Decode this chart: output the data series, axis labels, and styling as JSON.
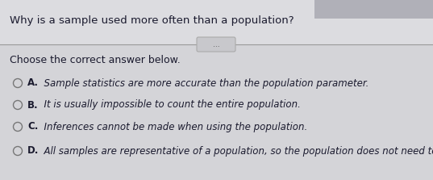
{
  "title": "Why is a sample used more often than a population?",
  "divider_text": "...",
  "subtitle": "Choose the correct answer below.",
  "options": [
    {
      "letter": "A.",
      "text": "  Sample statistics are more accurate than the population parameter."
    },
    {
      "letter": "B.",
      "text": "  It is usually impossible to count the entire population."
    },
    {
      "letter": "C.",
      "text": "  Inferences cannot be made when using the population."
    },
    {
      "letter": "D.",
      "text": "  All samples are representative of a population, so the population does not need to be used."
    }
  ],
  "bg_color": "#d4d4d8",
  "title_bg_color": "#dcdce0",
  "body_bg_color": "#d0d0d4",
  "text_color": "#1a1a2e",
  "title_fontsize": 9.5,
  "subtitle_fontsize": 9.0,
  "option_fontsize": 8.5,
  "letter_fontsize": 8.5,
  "circle_color": "#777777",
  "divider_color": "#999999",
  "pill_color": "#c8c8cc",
  "pill_text_color": "#444444",
  "pill_border_color": "#aaaaaa"
}
